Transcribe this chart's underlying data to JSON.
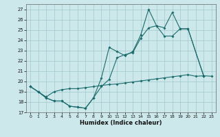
{
  "xlabel": "Humidex (Indice chaleur)",
  "xlim": [
    -0.5,
    23.5
  ],
  "ylim": [
    17,
    27.5
  ],
  "yticks": [
    17,
    18,
    19,
    20,
    21,
    22,
    23,
    24,
    25,
    26,
    27
  ],
  "xticks": [
    0,
    1,
    2,
    3,
    4,
    5,
    6,
    7,
    8,
    9,
    10,
    11,
    12,
    13,
    14,
    15,
    16,
    17,
    18,
    19,
    20,
    21,
    22,
    23
  ],
  "bg_color": "#cce8eb",
  "grid_color": "#a0c8cc",
  "line_color": "#1a6b6b",
  "curve1_x": [
    0,
    1,
    2,
    3,
    4,
    5,
    6,
    7,
    8,
    9,
    10,
    11,
    12,
    13,
    14,
    15,
    16,
    17,
    18,
    19,
    20,
    22
  ],
  "curve1_y": [
    19.5,
    19.0,
    18.4,
    18.1,
    18.1,
    17.6,
    17.5,
    17.4,
    18.4,
    20.3,
    23.3,
    22.9,
    22.5,
    22.9,
    24.5,
    27.0,
    25.4,
    25.2,
    26.7,
    25.1,
    25.1,
    20.5
  ],
  "curve2_x": [
    0,
    1,
    2,
    3,
    4,
    5,
    6,
    7,
    8,
    9,
    10,
    11,
    12,
    13,
    14,
    15,
    16,
    17,
    18,
    19,
    20,
    22
  ],
  "curve2_y": [
    19.5,
    19.0,
    18.4,
    18.1,
    18.1,
    17.6,
    17.5,
    17.4,
    18.4,
    19.5,
    20.2,
    22.3,
    22.6,
    22.8,
    24.2,
    25.2,
    25.4,
    24.4,
    24.4,
    25.1,
    25.1,
    20.5
  ],
  "curve3_x": [
    0,
    1,
    2,
    3,
    4,
    5,
    6,
    7,
    8,
    9,
    10,
    11,
    12,
    13,
    14,
    15,
    16,
    17,
    18,
    19,
    20,
    21,
    22,
    23
  ],
  "curve3_y": [
    19.5,
    19.0,
    18.5,
    19.0,
    19.2,
    19.3,
    19.3,
    19.4,
    19.5,
    19.6,
    19.7,
    19.75,
    19.85,
    19.95,
    20.05,
    20.15,
    20.25,
    20.35,
    20.45,
    20.55,
    20.65,
    20.5,
    20.55,
    20.5
  ]
}
